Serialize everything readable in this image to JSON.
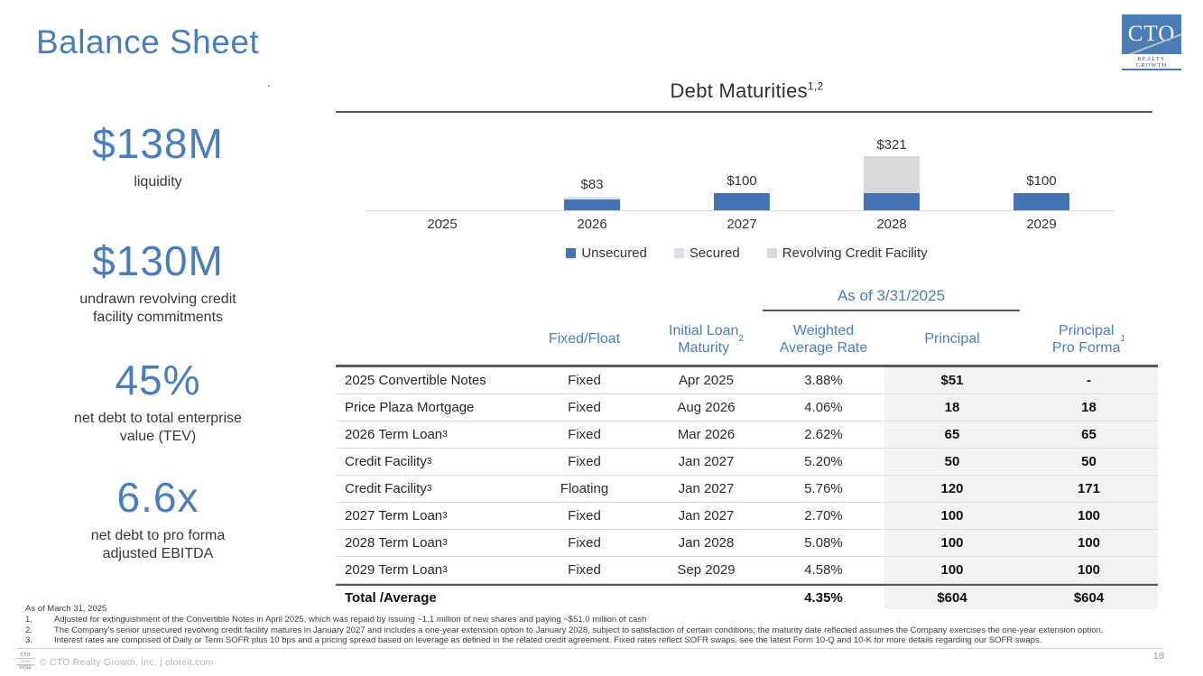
{
  "page": {
    "title": "Balance Sheet",
    "page_number": "18",
    "stray_mark": "."
  },
  "logo": {
    "acronym": "CTO",
    "subtitle": "REALTY GROWTH"
  },
  "metrics": [
    {
      "value": "$138M",
      "label": "liquidity"
    },
    {
      "value": "$130M",
      "label": "undrawn revolving credit\nfacility commitments"
    },
    {
      "value": "45%",
      "label": "net debt to total enterprise\nvalue (TEV)"
    },
    {
      "value": "6.6x",
      "label": "net debt to pro forma\nadjusted EBITDA"
    }
  ],
  "chart_data": {
    "type": "bar",
    "stacked": true,
    "title": "Debt Maturities",
    "title_superscript": "1,2",
    "categories": [
      "2025",
      "2026",
      "2027",
      "2028",
      "2029"
    ],
    "series": [
      {
        "name": "Unsecured",
        "color": "#4472b4",
        "values": [
          0,
          65,
          100,
          100,
          100
        ]
      },
      {
        "name": "Secured",
        "color": "#d9e1f2",
        "values": [
          0,
          18,
          0,
          0,
          0
        ]
      },
      {
        "name": "Revolving Credit Facility",
        "color": "#d9d9d9",
        "values": [
          0,
          0,
          0,
          221,
          0
        ]
      }
    ],
    "totals_labels": [
      "-",
      "$83",
      "$100",
      "$321",
      "$100"
    ],
    "ylim": [
      0,
      350
    ],
    "grid": false,
    "legend_position": "bottom",
    "units": "millions USD"
  },
  "table": {
    "as_of_label": "As of 3/31/2025",
    "columns": [
      {
        "text": "",
        "sup": ""
      },
      {
        "text": "Fixed/Float",
        "sup": ""
      },
      {
        "text": "Initial Loan\nMaturity",
        "sup": "2"
      },
      {
        "text": "Weighted\nAverage Rate",
        "sup": ""
      },
      {
        "text": "Principal",
        "sup": ""
      },
      {
        "text": "Principal\nPro Forma",
        "sup": "1"
      }
    ],
    "rows": [
      {
        "name": "2025 Convertible Notes",
        "sup": "",
        "fixed_float": "Fixed",
        "maturity": "Apr 2025",
        "rate": "3.88%",
        "principal": "$51",
        "pro_forma": "-"
      },
      {
        "name": "Price Plaza Mortgage",
        "sup": "",
        "fixed_float": "Fixed",
        "maturity": "Aug 2026",
        "rate": "4.06%",
        "principal": "18",
        "pro_forma": "18"
      },
      {
        "name": "2026 Term Loan",
        "sup": "3",
        "fixed_float": "Fixed",
        "maturity": "Mar 2026",
        "rate": "2.62%",
        "principal": "65",
        "pro_forma": "65"
      },
      {
        "name": "Credit Facility",
        "sup": "3",
        "fixed_float": "Fixed",
        "maturity": "Jan 2027",
        "rate": "5.20%",
        "principal": "50",
        "pro_forma": "50"
      },
      {
        "name": "Credit Facility",
        "sup": "3",
        "fixed_float": "Floating",
        "maturity": "Jan 2027",
        "rate": "5.76%",
        "principal": "120",
        "pro_forma": "171"
      },
      {
        "name": "2027 Term Loan",
        "sup": "3",
        "fixed_float": "Fixed",
        "maturity": "Jan 2027",
        "rate": "2.70%",
        "principal": "100",
        "pro_forma": "100"
      },
      {
        "name": "2028 Term Loan",
        "sup": "3",
        "fixed_float": "Fixed",
        "maturity": "Jan 2028",
        "rate": "5.08%",
        "principal": "100",
        "pro_forma": "100"
      },
      {
        "name": "2029 Term Loan",
        "sup": "3",
        "fixed_float": "Fixed",
        "maturity": "Sep 2029",
        "rate": "4.58%",
        "principal": "100",
        "pro_forma": "100"
      }
    ],
    "total_row": {
      "name": "Total /Average",
      "fixed_float": "",
      "maturity": "",
      "rate": "4.35%",
      "principal": "$604",
      "pro_forma": "$604"
    }
  },
  "footnotes": {
    "as_of": "As of March 31, 2025",
    "items": [
      "Adjusted for extinguishment of the Convertible Notes in April 2025, which was repaid by issuing ~1.1 million of new shares and paying ~$51.0 million of cash",
      "The Company's senior unsecured revolving credit facility matures in January 2027 and includes a one-year extension option to January 2028, subject to satisfaction of certain conditions; the maturity date reflected assumes the Company exercises the one-year extension option.",
      "Interest rates are comprised of Daily or Term SOFR plus 10 bps and a pricing spread based on leverage as defined in the related credit agreement.  Fixed rates reflect SOFR swaps, see the latest Form 10-Q and 10-K for more details regarding our SOFR swaps."
    ]
  },
  "footer": {
    "nyse_badge": {
      "line1": "CTO",
      "line2": "LISTED",
      "line3": "NYSE"
    },
    "copyright": "© CTO Realty Growth, Inc. | ctoreit.com"
  }
}
